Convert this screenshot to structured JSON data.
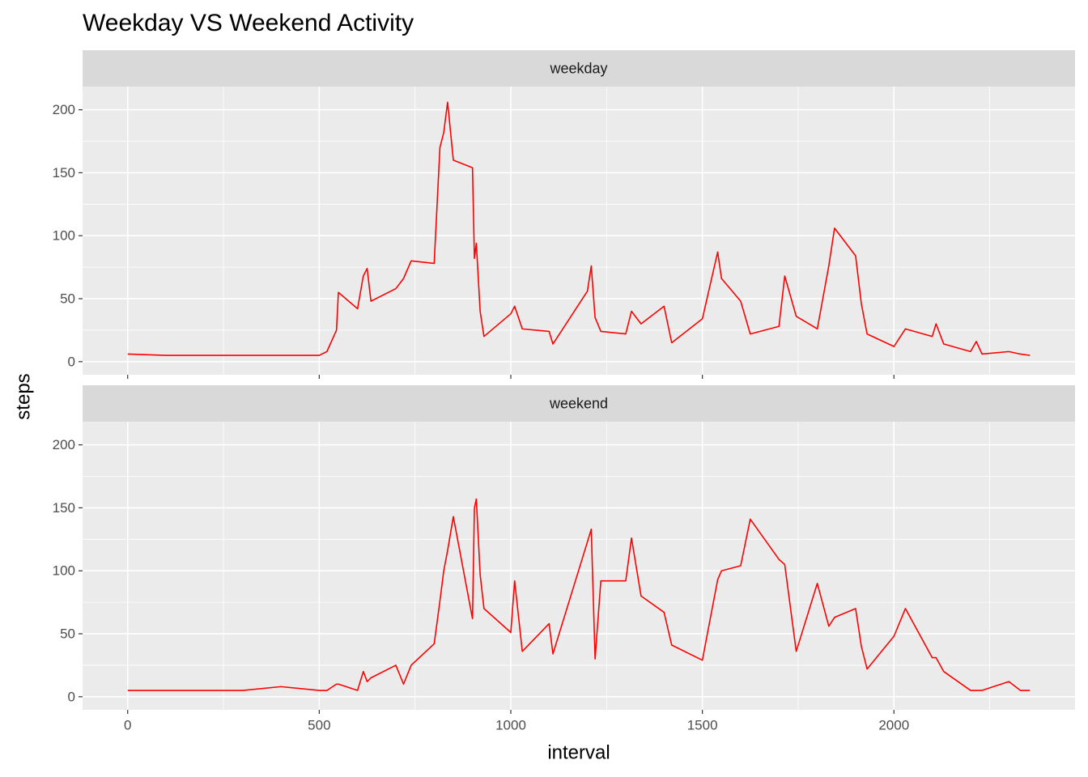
{
  "chart_data": {
    "type": "line",
    "title": "Weekday VS Weekend Activity",
    "x_label": "interval",
    "y_label": "steps",
    "xlim": [
      -117.75,
      2472.75
    ],
    "xticks": [
      0,
      500,
      1000,
      1500,
      2000
    ],
    "ylim": [
      -10.4,
      218.4
    ],
    "yticks": [
      0,
      50,
      100,
      150,
      200
    ],
    "grid": true,
    "x": [
      0,
      100,
      300,
      400,
      500,
      520,
      545,
      550,
      600,
      615,
      625,
      635,
      700,
      720,
      740,
      800,
      815,
      825,
      835,
      850,
      900,
      905,
      910,
      920,
      930,
      1000,
      1010,
      1030,
      1100,
      1110,
      1200,
      1210,
      1220,
      1235,
      1300,
      1315,
      1340,
      1400,
      1420,
      1500,
      1540,
      1550,
      1600,
      1625,
      1700,
      1715,
      1745,
      1800,
      1830,
      1845,
      1900,
      1915,
      1930,
      2000,
      2030,
      2100,
      2110,
      2130,
      2200,
      2215,
      2230,
      2300,
      2330,
      2355
    ],
    "series": [
      {
        "name": "weekday",
        "color": "#ff0000",
        "values": [
          6,
          5,
          5,
          5,
          5,
          8,
          25,
          55,
          42,
          68,
          74,
          48,
          58,
          66,
          80,
          78,
          170,
          182,
          206,
          160,
          154,
          82,
          94,
          40,
          20,
          38,
          44,
          26,
          24,
          14,
          56,
          76,
          35,
          24,
          22,
          40,
          30,
          44,
          15,
          34,
          87,
          66,
          48,
          22,
          28,
          68,
          36,
          26,
          76,
          106,
          84,
          46,
          22,
          12,
          26,
          20,
          30,
          14,
          8,
          16,
          6,
          8,
          6,
          5
        ]
      },
      {
        "name": "weekend",
        "color": "#ff0000",
        "values": [
          5,
          5,
          5,
          8,
          5,
          5,
          10,
          10,
          5,
          20,
          12,
          15,
          25,
          10,
          25,
          42,
          76,
          100,
          116,
          143,
          62,
          150,
          157,
          97,
          70,
          51,
          92,
          36,
          58,
          34,
          123,
          133,
          30,
          92,
          92,
          126,
          80,
          67,
          41,
          29,
          93,
          100,
          104,
          141,
          109,
          105,
          36,
          90,
          56,
          63,
          70,
          40,
          22,
          48,
          70,
          31,
          31,
          20,
          5,
          5,
          5,
          12,
          5,
          5
        ]
      }
    ]
  }
}
